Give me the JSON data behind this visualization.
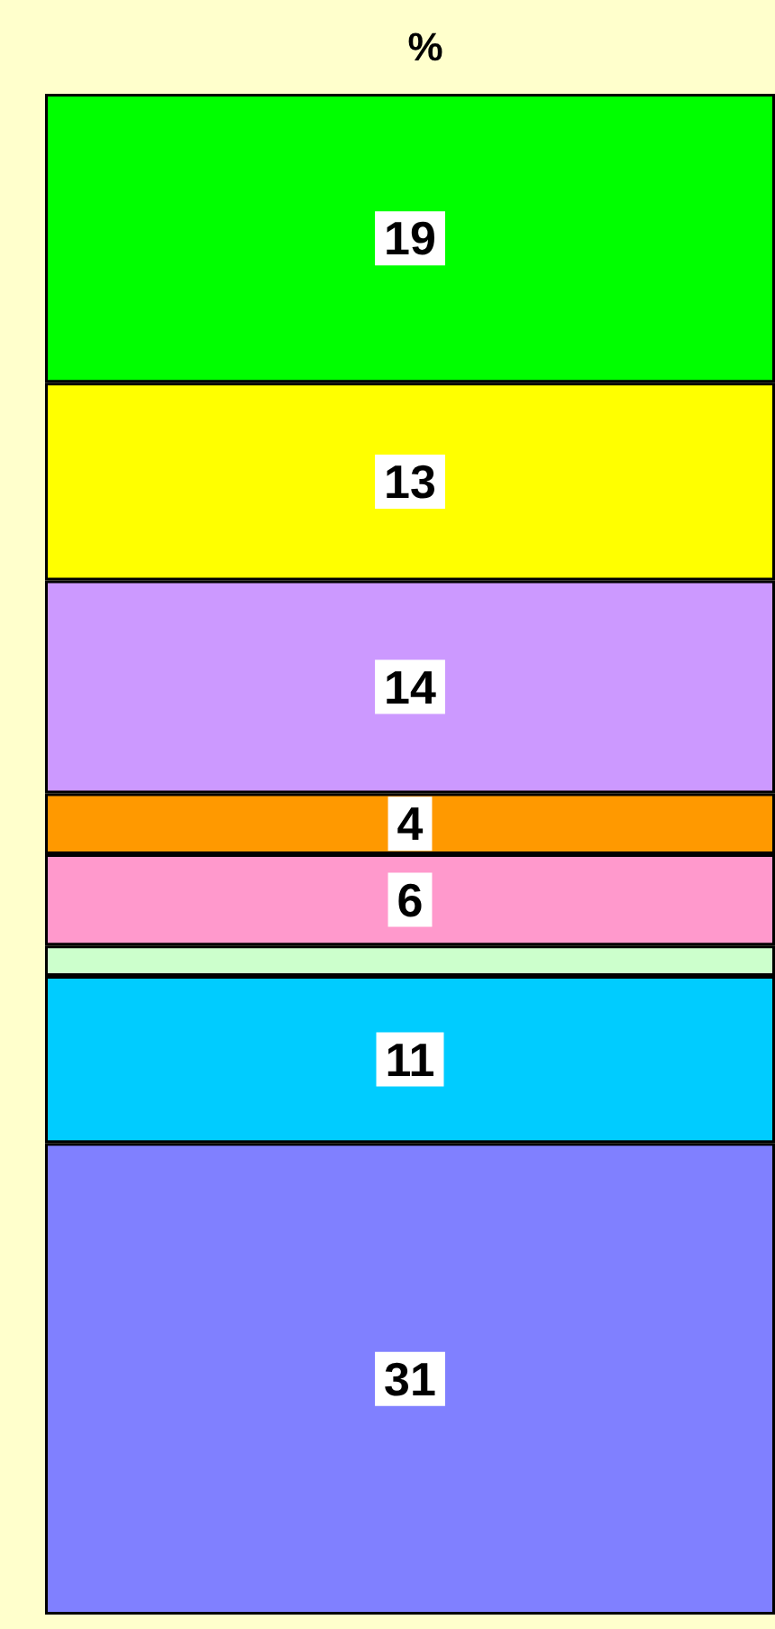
{
  "chart_data": {
    "type": "bar",
    "title": "%",
    "categories": [
      null
    ],
    "stacked": true,
    "series": [
      {
        "color": "#8080ff",
        "values": [
          31
        ],
        "value_labels": [
          "31"
        ]
      },
      {
        "color": "#00ccff",
        "values": [
          11
        ],
        "value_labels": [
          "11"
        ]
      },
      {
        "color": "#ccffcc",
        "values": [
          2
        ],
        "value_labels": [
          null
        ]
      },
      {
        "color": "#ff99cc",
        "values": [
          6
        ],
        "value_labels": [
          "6"
        ]
      },
      {
        "color": "#ff9900",
        "values": [
          4
        ],
        "value_labels": [
          "4"
        ]
      },
      {
        "color": "#cc99ff",
        "values": [
          14
        ],
        "value_labels": [
          "14"
        ]
      },
      {
        "color": "#ffff00",
        "values": [
          13
        ],
        "value_labels": [
          "13"
        ]
      },
      {
        "color": "#00ff00",
        "values": [
          19
        ],
        "value_labels": [
          "19"
        ]
      }
    ],
    "grid": false
  }
}
